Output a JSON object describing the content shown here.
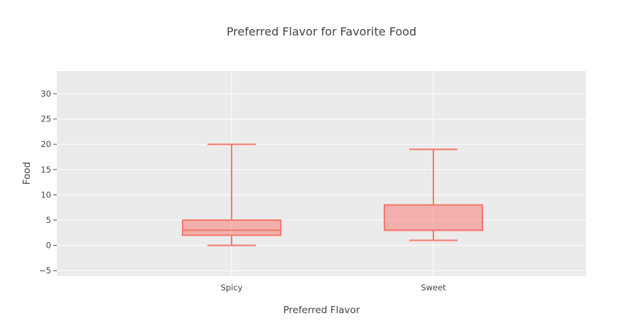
{
  "chart_data": {
    "type": "box",
    "title": "Preferred Flavor for Favorite Food",
    "xlabel": "Preferred Flavor",
    "ylabel": "Food",
    "categories": [
      "Spicy",
      "Sweet"
    ],
    "boxes": [
      {
        "category": "Spicy",
        "min": 0,
        "q1": 2,
        "median": 3,
        "q3": 5,
        "max": 20
      },
      {
        "category": "Sweet",
        "min": 1,
        "q1": 3,
        "median": 3,
        "q3": 8,
        "max": 19
      }
    ],
    "ylim": [
      -6.1,
      34.5
    ],
    "yticks": [
      -5,
      0,
      5,
      10,
      15,
      20,
      25,
      30
    ],
    "ytick_labels": [
      "−5",
      "0",
      "5",
      "10",
      "15",
      "20",
      "25",
      "30"
    ],
    "grid": true,
    "colors": {
      "plot_background": "#ebebeb",
      "grid": "#ffffff",
      "box_line": "#f8766d",
      "box_fill": "#f8766d",
      "tick_mark": "#444444",
      "text": "#444444"
    }
  }
}
